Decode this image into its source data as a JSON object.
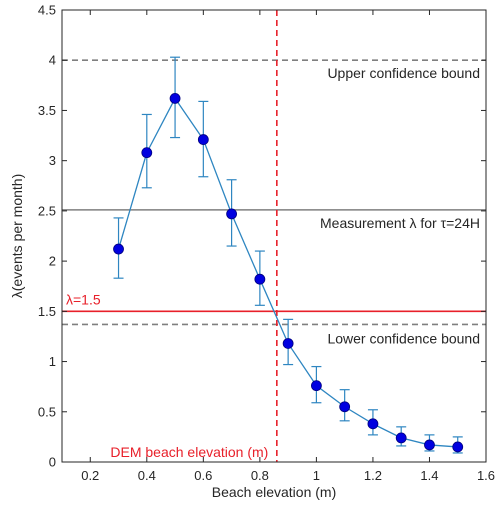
{
  "chart_data": {
    "type": "line",
    "xlabel": "Beach elevation (m)",
    "ylabel": "λ(events per month)",
    "xlim": [
      0.1,
      1.6
    ],
    "ylim": [
      0,
      4.5
    ],
    "xticks": [
      0.2,
      0.4,
      0.6,
      0.8,
      1,
      1.2,
      1.4,
      1.6
    ],
    "xtick_labels": [
      "0.2",
      "0.4",
      "0.6",
      "0.8",
      "1",
      "1.2",
      "1.4",
      "1.6"
    ],
    "yticks": [
      0,
      0.5,
      1,
      1.5,
      2,
      2.5,
      3,
      3.5,
      4,
      4.5
    ],
    "ytick_labels": [
      "0",
      "0.5",
      "1",
      "1.5",
      "2",
      "2.5",
      "3",
      "3.5",
      "4",
      "4.5"
    ],
    "grid": false,
    "series": [
      {
        "x": [
          0.3,
          0.4,
          0.5,
          0.6,
          0.7,
          0.8,
          0.9,
          1.0,
          1.1,
          1.2,
          1.3,
          1.4,
          1.5
        ],
        "y": [
          2.12,
          3.08,
          3.62,
          3.21,
          2.47,
          1.82,
          1.18,
          0.76,
          0.55,
          0.38,
          0.24,
          0.17,
          0.15
        ],
        "err_low": [
          1.83,
          2.73,
          3.23,
          2.84,
          2.15,
          1.56,
          0.97,
          0.59,
          0.41,
          0.27,
          0.16,
          0.11,
          0.09
        ],
        "err_high": [
          2.43,
          3.46,
          4.03,
          3.59,
          2.81,
          2.1,
          1.42,
          0.95,
          0.72,
          0.52,
          0.35,
          0.27,
          0.25
        ],
        "line_color": "#2e86c1",
        "marker_color": "#0000e0"
      }
    ],
    "hlines": [
      {
        "y": 4.0,
        "style": "dashed",
        "color": "#7f7f7f",
        "label": "Upper confidence bound",
        "label_x": 1.6,
        "label_anchor": "end",
        "label_dy": 18
      },
      {
        "y": 2.51,
        "style": "solid",
        "color": "#7f7f7f",
        "label": "Measurement λ for τ=24H",
        "label_x": 1.6,
        "label_anchor": "end",
        "label_dy": 18
      },
      {
        "y": 1.5,
        "style": "solid",
        "color": "#e8202a",
        "label": "λ=1.5",
        "label_x": 0.1,
        "label_anchor": "start",
        "label_dy": -7,
        "label_color": "#e8202a"
      },
      {
        "y": 1.37,
        "style": "dashed",
        "color": "#7f7f7f",
        "label": "Lower confidence bound",
        "label_x": 1.6,
        "label_anchor": "end",
        "label_dy": 19
      }
    ],
    "vlines": [
      {
        "x": 0.86,
        "style": "dashed",
        "color": "#e8202a",
        "label": "DEM beach elevation (m)",
        "label_x": 0.83,
        "label_y": 0.05,
        "label_anchor": "end",
        "label_color": "#e8202a"
      }
    ]
  }
}
